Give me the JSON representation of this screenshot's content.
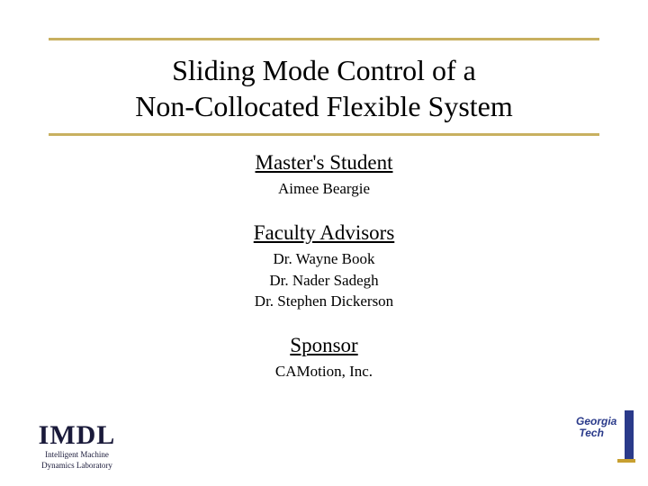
{
  "colors": {
    "rule": "#c8b060",
    "text": "#000000",
    "logo_blue": "#2a3a8a",
    "logo_gold": "#c8a030",
    "imdl_blue": "#1a1a3a",
    "background": "#ffffff"
  },
  "title": {
    "line1": "Sliding Mode Control of a",
    "line2": "Non-Collocated Flexible System",
    "fontsize": 32
  },
  "sections": [
    {
      "heading": "Master's Student",
      "lines": [
        "Aimee Beargie"
      ]
    },
    {
      "heading": "Faculty Advisors",
      "lines": [
        "Dr. Wayne Book",
        "Dr. Nader Sadegh",
        "Dr. Stephen Dickerson"
      ]
    },
    {
      "heading": "Sponsor",
      "lines": [
        "CAMotion, Inc."
      ]
    }
  ],
  "logo_left": {
    "main": "IMDL",
    "sub1": "Intelligent Machine",
    "sub2": "Dynamics Laboratory"
  },
  "logo_right": {
    "line1": "Georgia",
    "line2": "Tech"
  }
}
